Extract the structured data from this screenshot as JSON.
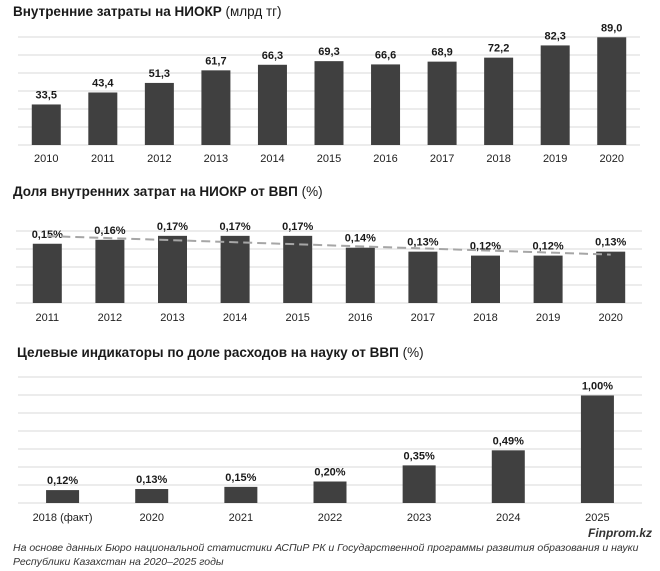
{
  "charts": [
    {
      "title_bold": "Внутренние затраты на НИОКР",
      "title_unit": " (млрд тг)"
    },
    {
      "title_bold": "Доля внутренних затрат на НИОКР от ВВП",
      "title_unit": " (%)"
    },
    {
      "title_bold": "Целевые индикаторы по доле расходов на науку от ВВП",
      "title_unit": " (%)"
    }
  ],
  "footer": {
    "brand": "Finprom.kz",
    "source": "На основе данных Бюро национальной статистики АСПиР РК и Государственной программы развития образования и науки Республики Казахстан на 2020–2025 годы"
  },
  "colors": {
    "bar": "#404040",
    "trend": "#a6a6a6",
    "grid": "#d9d9d9"
  },
  "chart_data": [
    {
      "type": "bar",
      "title": "Внутренние затраты на НИОКР (млрд тг)",
      "categories": [
        "2010",
        "2011",
        "2012",
        "2013",
        "2014",
        "2015",
        "2016",
        "2017",
        "2018",
        "2019",
        "2020"
      ],
      "values": [
        33.5,
        43.4,
        51.3,
        61.7,
        66.3,
        69.3,
        66.6,
        68.9,
        72.2,
        82.3,
        89.0
      ],
      "labels": [
        "33,5",
        "43,4",
        "51,3",
        "61,7",
        "66,3",
        "69,3",
        "66,6",
        "68,9",
        "72,2",
        "82,3",
        "89,0"
      ],
      "ylim": [
        0,
        100
      ]
    },
    {
      "type": "bar",
      "title": "Доля внутренних затрат на НИОКР от ВВП (%)",
      "categories": [
        "2011",
        "2012",
        "2013",
        "2014",
        "2015",
        "2016",
        "2017",
        "2018",
        "2019",
        "2020"
      ],
      "values": [
        0.15,
        0.16,
        0.17,
        0.17,
        0.17,
        0.14,
        0.13,
        0.12,
        0.12,
        0.13
      ],
      "labels": [
        "0,15%",
        "0,16%",
        "0,17%",
        "0,17%",
        "0,17%",
        "0,14%",
        "0,13%",
        "0,12%",
        "0,12%",
        "0,13%"
      ],
      "trendline": "linear, dashed",
      "ylim": [
        0,
        0.2
      ]
    },
    {
      "type": "bar",
      "title": "Целевые индикаторы по доле расходов на науку от ВВП (%)",
      "categories": [
        "2018 (факт)",
        "2020",
        "2021",
        "2022",
        "2023",
        "2024",
        "2025"
      ],
      "values": [
        0.12,
        0.13,
        0.15,
        0.2,
        0.35,
        0.49,
        1.0
      ],
      "labels": [
        "0,12%",
        "0,13%",
        "0,15%",
        "0,20%",
        "0,35%",
        "0,49%",
        "1,00%"
      ],
      "ylim": [
        0,
        1.2
      ]
    }
  ]
}
